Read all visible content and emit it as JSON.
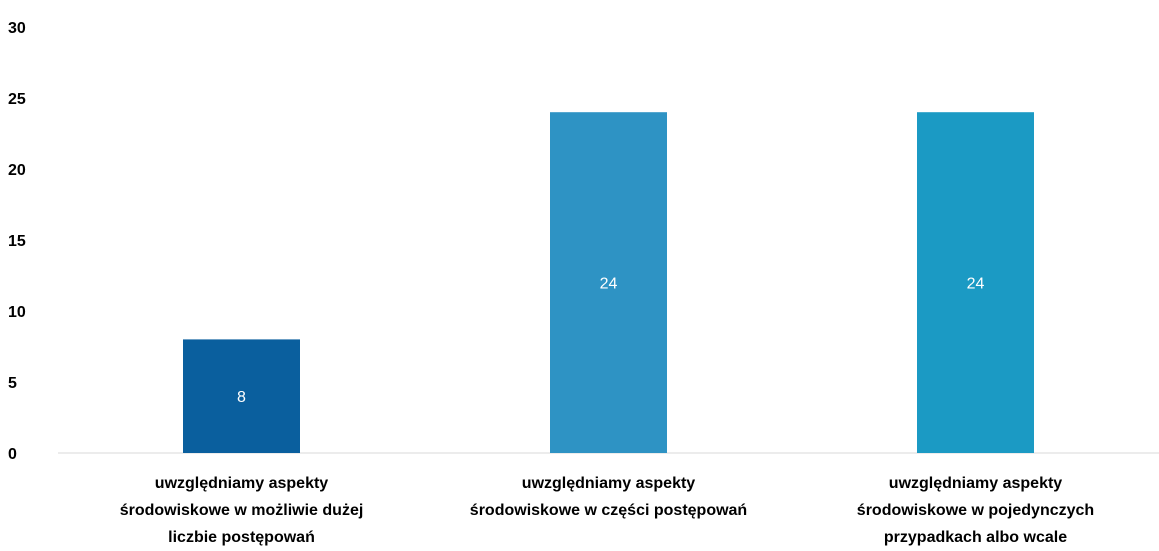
{
  "chart_data": {
    "type": "bar",
    "categories": [
      [
        "uwzględniamy aspekty",
        "środowiskowe w możliwie dużej",
        "liczbie postępowań"
      ],
      [
        "uwzględniamy aspekty",
        "środowiskowe w części postępowań"
      ],
      [
        "uwzględniamy aspekty",
        "środowiskowe w pojedynczych",
        "przypadkach albo wcale"
      ]
    ],
    "values": [
      8,
      24,
      24
    ],
    "data_labels": [
      "8",
      "24",
      "24"
    ],
    "colors": [
      "#0a5f9e",
      "#2e93c4",
      "#1b9ac4"
    ],
    "ylim": [
      0,
      30
    ],
    "yticks": [
      0,
      5,
      10,
      15,
      20,
      25,
      30
    ],
    "ytick_labels": [
      "0",
      "5",
      "10",
      "15",
      "20",
      "25",
      "30"
    ],
    "grid": false,
    "legend": "none",
    "title": "",
    "xlabel": "",
    "ylabel": ""
  }
}
